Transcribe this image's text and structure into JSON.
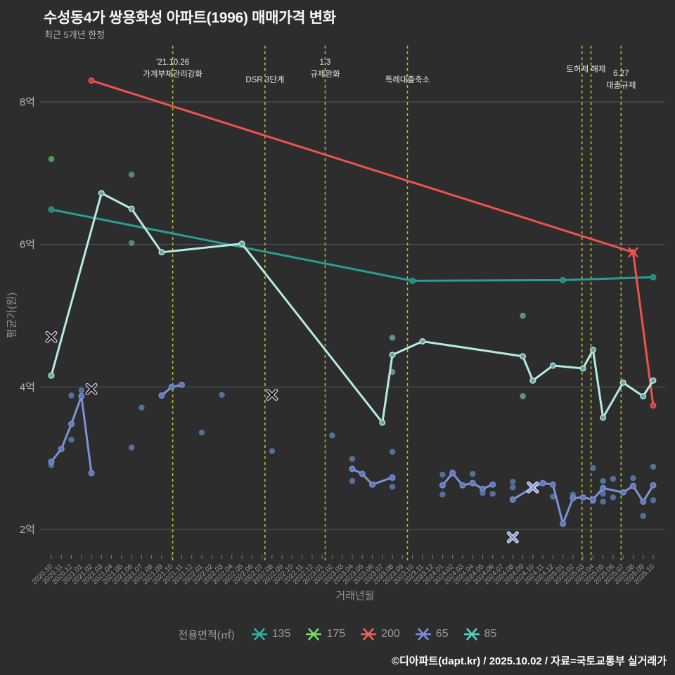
{
  "header": {
    "title": "수성동4가 쌍용화성 아파트(1996) 매매가격 변화",
    "subtitle": "최근 5개년 한정"
  },
  "footer": {
    "credit": "©디아파트(dapt.kr) / 2025.10.02 / 자료=국토교통부 실거래가"
  },
  "legend": {
    "title": "전용면적(㎡)",
    "items": [
      {
        "label": "135",
        "color": "#36b3a8"
      },
      {
        "label": "175",
        "color": "#7bdc6a"
      },
      {
        "label": "200",
        "color": "#f1605c"
      },
      {
        "label": "65",
        "color": "#7b90e0"
      },
      {
        "label": "85",
        "color": "#5ad1cc"
      }
    ]
  },
  "chart_data": {
    "type": "line",
    "title": "수성동4가 쌍용화성 아파트(1996) 매매가격 변화",
    "xlabel": "거래년월",
    "ylabel": "평균가(원)",
    "unit": "억",
    "grid": true,
    "ylim": [
      1.63,
      8.79
    ],
    "y_ticks": [
      {
        "label": "2억",
        "value": 2
      },
      {
        "label": "4억",
        "value": 4
      },
      {
        "label": "6억",
        "value": 6
      },
      {
        "label": "8억",
        "value": 8
      }
    ],
    "x_categories": [
      "2020.10",
      "2020.11",
      "2020.12",
      "2021.01",
      "2021.02",
      "2021.03",
      "2021.04",
      "2021.05",
      "2021.06",
      "2021.07",
      "2021.08",
      "2021.09",
      "2021.10",
      "2021.11",
      "2021.12",
      "2022.01",
      "2022.02",
      "2022.03",
      "2022.04",
      "2022.05",
      "2022.06",
      "2022.07",
      "2022.08",
      "2022.09",
      "2022.10",
      "2022.11",
      "2022.12",
      "2023.01",
      "2023.02",
      "2023.03",
      "2023.04",
      "2023.05",
      "2023.06",
      "2023.07",
      "2023.08",
      "2023.09",
      "2023.10",
      "2023.11",
      "2023.12",
      "2024.01",
      "2024.02",
      "2024.03",
      "2024.04",
      "2024.05",
      "2024.06",
      "2024.07",
      "2024.08",
      "2024.09",
      "2024.10",
      "2024.11",
      "2024.12",
      "2025.01",
      "2025.02",
      "2025.03",
      "2025.04",
      "2025.05",
      "2025.06",
      "2025.07",
      "2025.08",
      "2025.09",
      "2025.10"
    ],
    "series": [
      {
        "name": "135",
        "color": "#2a9d95",
        "dot_color": "#2f837c",
        "width": 3,
        "segments": [
          [
            [
              "2020.10",
              6.49
            ],
            [
              "2023.10",
              5.49
            ],
            [
              "2025.01",
              5.5
            ],
            [
              "2025.10",
              5.54
            ]
          ]
        ]
      },
      {
        "name": "175",
        "color": "#7bdc6a",
        "dot_color": "#52ab54",
        "width": 3,
        "segments": []
      },
      {
        "name": "200",
        "color": "#ee534f",
        "dot_color": "#c0413f",
        "width": 3,
        "segments": [
          [
            [
              "2021.02",
              8.3
            ],
            [
              "2025.08",
              5.89
            ],
            [
              "2025.10",
              3.74
            ]
          ]
        ]
      },
      {
        "name": "65",
        "color": "#7d92d6",
        "dot_color": "#5f78b8",
        "width": 3,
        "segments": [
          [
            [
              "2020.10",
              2.95
            ],
            [
              "2020.11",
              3.13
            ],
            [
              "2020.12",
              3.48
            ],
            [
              "2021.01",
              3.87
            ],
            [
              "2021.02",
              2.79
            ]
          ],
          [
            [
              "2021.09",
              3.88
            ],
            [
              "2021.10",
              4.0
            ],
            [
              "2021.11",
              4.03
            ]
          ],
          [
            [
              "2023.04",
              2.85
            ],
            [
              "2023.05",
              2.78
            ],
            [
              "2023.06",
              2.63
            ],
            [
              "2023.08",
              2.73
            ]
          ],
          [
            [
              "2024.01",
              2.62
            ],
            [
              "2024.02",
              2.79
            ],
            [
              "2024.03",
              2.62
            ],
            [
              "2024.04",
              2.65
            ],
            [
              "2024.05",
              2.57
            ],
            [
              "2024.06",
              2.63
            ]
          ],
          [
            [
              "2024.08",
              2.42
            ],
            [
              "2024.10",
              2.59
            ],
            [
              "2024.11",
              2.65
            ],
            [
              "2024.12",
              2.63
            ],
            [
              "2025.01",
              2.08
            ],
            [
              "2025.02",
              2.44
            ],
            [
              "2025.03",
              2.45
            ],
            [
              "2025.04",
              2.42
            ],
            [
              "2025.05",
              2.58
            ],
            [
              "2025.07",
              2.52
            ],
            [
              "2025.08",
              2.61
            ],
            [
              "2025.09",
              2.39
            ],
            [
              "2025.10",
              2.62
            ]
          ]
        ]
      },
      {
        "name": "85",
        "color": "#b6ebe4",
        "dot_color": "#6fa0a3",
        "width": 3,
        "segments": [
          [
            [
              "2020.10",
              4.16
            ],
            [
              "2021.03",
              6.72
            ],
            [
              "2021.06",
              6.5
            ],
            [
              "2021.09",
              5.89
            ],
            [
              "2022.05",
              6.01
            ],
            [
              "2023.07",
              3.5
            ],
            [
              "2023.08",
              4.45
            ],
            [
              "2023.11",
              4.64
            ],
            [
              "2024.09",
              4.43
            ],
            [
              "2024.10",
              4.09
            ],
            [
              "2024.12",
              4.3
            ],
            [
              "2025.03",
              4.26
            ],
            [
              "2025.04",
              4.52
            ],
            [
              "2025.05",
              3.57
            ],
            [
              "2025.07",
              4.06
            ],
            [
              "2025.09",
              3.87
            ],
            [
              "2025.10",
              4.09
            ]
          ]
        ]
      }
    ],
    "scatter": [
      {
        "series": "65",
        "color": "#5b79a8",
        "points": [
          [
            "2020.10",
            2.9
          ],
          [
            "2020.12",
            3.88
          ],
          [
            "2020.12",
            3.26
          ],
          [
            "2021.01",
            3.95
          ],
          [
            "2021.06",
            3.15
          ],
          [
            "2021.07",
            3.71
          ],
          [
            "2022.01",
            3.36
          ],
          [
            "2022.03",
            3.89
          ],
          [
            "2022.08",
            3.1
          ],
          [
            "2023.02",
            3.32
          ],
          [
            "2023.04",
            2.99
          ],
          [
            "2023.04",
            2.68
          ],
          [
            "2023.08",
            3.09
          ],
          [
            "2023.08",
            2.72
          ],
          [
            "2023.08",
            2.6
          ],
          [
            "2024.01",
            2.77
          ],
          [
            "2024.01",
            2.49
          ],
          [
            "2024.02",
            2.8
          ],
          [
            "2024.04",
            2.78
          ],
          [
            "2024.05",
            2.51
          ],
          [
            "2024.06",
            2.5
          ],
          [
            "2024.08",
            2.67
          ],
          [
            "2024.08",
            2.59
          ],
          [
            "2024.12",
            2.46
          ],
          [
            "2025.02",
            2.49
          ],
          [
            "2025.04",
            2.86
          ],
          [
            "2025.04",
            2.4
          ],
          [
            "2025.05",
            2.68
          ],
          [
            "2025.05",
            2.5
          ],
          [
            "2025.05",
            2.39
          ],
          [
            "2025.06",
            2.71
          ],
          [
            "2025.06",
            2.45
          ],
          [
            "2025.08",
            2.72
          ],
          [
            "2025.09",
            2.19
          ],
          [
            "2025.10",
            2.88
          ],
          [
            "2025.10",
            2.41
          ]
        ]
      },
      {
        "series": "135",
        "color": "#5f8f94",
        "points": [
          [
            "2021.06",
            6.98
          ],
          [
            "2021.06",
            6.02
          ]
        ]
      },
      {
        "series": "85",
        "color": "#6f9aa4",
        "points": [
          [
            "2023.08",
            4.69
          ],
          [
            "2023.08",
            4.21
          ],
          [
            "2024.09",
            5.0
          ],
          [
            "2024.09",
            3.87
          ]
        ]
      },
      {
        "series": "175",
        "color": "#52ab54",
        "points": [
          [
            "2020.10",
            7.2
          ]
        ]
      }
    ],
    "cancelled_x": [
      {
        "color": "#14141f",
        "halo": "#cfd2d8",
        "points": [
          [
            "2020.10",
            4.7
          ],
          [
            "2021.02",
            3.97
          ],
          [
            "2022.08",
            3.89
          ]
        ]
      },
      {
        "color": "#7d92d6",
        "halo": "#e3e7f2",
        "points": [
          [
            "2024.08",
            1.89
          ],
          [
            "2024.10",
            2.59
          ]
        ]
      },
      {
        "color": "#ee534f",
        "halo": "",
        "points": [
          [
            "2025.08",
            5.89
          ]
        ]
      }
    ],
    "vlines": [
      {
        "xm": 12.1
      },
      {
        "xm": 21.3
      },
      {
        "xm": 27.3
      },
      {
        "xm": 35.5
      },
      {
        "xm": 52.9
      },
      {
        "xm": 53.8
      },
      {
        "xm": 56.8
      }
    ],
    "vline_labels": [
      {
        "xm": 12.1,
        "ty": 92,
        "lines": [
          "'21.10.26",
          "가계부채관리강화"
        ]
      },
      {
        "xm": 21.3,
        "ty": 117,
        "lines": [
          "DSR 3단계"
        ]
      },
      {
        "xm": 27.3,
        "ty": 92,
        "lines": [
          "1.3",
          "규제완화"
        ]
      },
      {
        "xm": 35.5,
        "ty": 117,
        "lines": [
          "특례대출축소"
        ]
      },
      {
        "xm": 53.3,
        "ty": 102,
        "lines": [
          "토허제 해제"
        ]
      },
      {
        "xm": 56.8,
        "ty": 108,
        "lines": [
          "6.27",
          "대출규제"
        ]
      }
    ],
    "style": {
      "bg": "#2d2d2d",
      "grid_color": "#565656",
      "tick_color": "#7d7d7d",
      "x_tick_text": "#9b9b9b",
      "y_tick_text": "#b3b3b3",
      "vline_color": "#babd2b",
      "annotation_text": "#e6e6e6"
    }
  }
}
